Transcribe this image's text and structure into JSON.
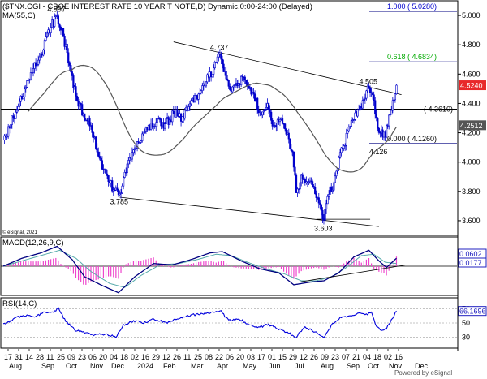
{
  "header": {
    "main_title": "($TNX.CGI - CBOE INTEREST RATE 10 YEAR T NOTE,D) Dynamic,0:00-24:00 (Delayed)",
    "ma_label": "MA(55,C)",
    "copyright": "© eSignal, 2021",
    "macd_label": "MACD(12,26,9,C)",
    "rsi_label": "RSI(14,C)",
    "footer": "Powered by eSignal"
  },
  "colors": {
    "candle": "#0000cc",
    "ma": "#555555",
    "fib_line": "#000080",
    "fib_1000": "#0000cc",
    "fib_0618": "#00aa00",
    "fib_0000": "#000000",
    "price_tag": "#e8282a",
    "last_tag": "#555555",
    "macd_line": "#000080",
    "signal_line": "#55aaaa",
    "histogram": "#ee44cc",
    "rsi_line": "#0000dd",
    "axis_tag": "#2020c0"
  },
  "chart_data": [
    {
      "type": "candlestick",
      "title": "($TNX.CGI - CBOE INTEREST RATE 10 YEAR T NOTE,D) Dynamic,0:00-24:00 (Delayed)",
      "ylim": [
        3.5,
        5.1
      ],
      "y_ticks": [
        "5.000",
        "4.800",
        "4.600",
        "4.400",
        "4.200",
        "4.000",
        "3.800",
        "3.600"
      ],
      "x_ticks": [
        "17",
        "31",
        "14",
        "28",
        "11",
        "25",
        "09",
        "23",
        "06",
        "20",
        "04",
        "18",
        "02",
        "16",
        "29",
        "12",
        "26",
        "11",
        "25",
        "08",
        "22",
        "06",
        "20",
        "03",
        "17",
        "01",
        "15",
        "29",
        "12",
        "26",
        "09",
        "23",
        "07",
        "21",
        "04",
        "18",
        "02",
        "16"
      ],
      "x_months": [
        "Aug",
        "Sep",
        "Oct",
        "Nov",
        "Dec",
        "2024",
        "Feb",
        "Mar",
        "Apr",
        "May",
        "Jun",
        "Jul",
        "Aug",
        "Sep",
        "Oct",
        "Nov",
        "Dec"
      ],
      "pivot_points": [
        {
          "d": 0,
          "v": 4.15
        },
        {
          "d": 10,
          "v": 4.34
        },
        {
          "d": 20,
          "v": 4.56
        },
        {
          "d": 30,
          "v": 4.74
        },
        {
          "d": 38,
          "v": 4.92
        },
        {
          "d": 43,
          "v": 4.997
        },
        {
          "d": 48,
          "v": 4.86
        },
        {
          "d": 53,
          "v": 4.66
        },
        {
          "d": 58,
          "v": 4.45
        },
        {
          "d": 64,
          "v": 4.33
        },
        {
          "d": 70,
          "v": 4.25
        },
        {
          "d": 76,
          "v": 4.04
        },
        {
          "d": 82,
          "v": 3.92
        },
        {
          "d": 88,
          "v": 3.81
        },
        {
          "d": 93,
          "v": 3.785
        },
        {
          "d": 97,
          "v": 3.93
        },
        {
          "d": 102,
          "v": 4.02
        },
        {
          "d": 108,
          "v": 4.13
        },
        {
          "d": 115,
          "v": 4.22
        },
        {
          "d": 122,
          "v": 4.27
        },
        {
          "d": 129,
          "v": 4.26
        },
        {
          "d": 136,
          "v": 4.33
        },
        {
          "d": 143,
          "v": 4.31
        },
        {
          "d": 150,
          "v": 4.42
        },
        {
          "d": 157,
          "v": 4.47
        },
        {
          "d": 164,
          "v": 4.58
        },
        {
          "d": 170,
          "v": 4.68
        },
        {
          "d": 173,
          "v": 4.737
        },
        {
          "d": 177,
          "v": 4.62
        },
        {
          "d": 182,
          "v": 4.48
        },
        {
          "d": 187,
          "v": 4.52
        },
        {
          "d": 192,
          "v": 4.58
        },
        {
          "d": 196,
          "v": 4.5
        },
        {
          "d": 201,
          "v": 4.42
        },
        {
          "d": 206,
          "v": 4.32
        },
        {
          "d": 211,
          "v": 4.4
        },
        {
          "d": 216,
          "v": 4.25
        },
        {
          "d": 221,
          "v": 4.29
        },
        {
          "d": 226,
          "v": 4.19
        },
        {
          "d": 231,
          "v": 4.07
        },
        {
          "d": 234,
          "v": 3.79
        },
        {
          "d": 238,
          "v": 3.91
        },
        {
          "d": 243,
          "v": 3.86
        },
        {
          "d": 248,
          "v": 3.83
        },
        {
          "d": 253,
          "v": 3.71
        },
        {
          "d": 256,
          "v": 3.603
        },
        {
          "d": 260,
          "v": 3.78
        },
        {
          "d": 264,
          "v": 3.86
        },
        {
          "d": 268,
          "v": 4.03
        },
        {
          "d": 272,
          "v": 4.11
        },
        {
          "d": 276,
          "v": 4.24
        },
        {
          "d": 280,
          "v": 4.29
        },
        {
          "d": 284,
          "v": 4.36
        },
        {
          "d": 288,
          "v": 4.43
        },
        {
          "d": 292,
          "v": 4.505
        },
        {
          "d": 296,
          "v": 4.42
        },
        {
          "d": 299,
          "v": 4.23
        },
        {
          "d": 302,
          "v": 4.22
        },
        {
          "d": 305,
          "v": 4.17
        },
        {
          "d": 308,
          "v": 4.32
        },
        {
          "d": 311,
          "v": 4.42
        },
        {
          "d": 314,
          "v": 4.524
        }
      ],
      "annotations": [
        {
          "text": "4.997",
          "d": 43,
          "v": 4.997
        },
        {
          "text": "4.737",
          "d": 173,
          "v": 4.737
        },
        {
          "text": "4.505",
          "d": 292,
          "v": 4.505
        },
        {
          "text": "3.785",
          "d": 93,
          "v": 3.785
        },
        {
          "text": "3.603",
          "d": 256,
          "v": 3.603
        },
        {
          "text": "4.126",
          "d": 300,
          "v": 4.126
        }
      ],
      "fib_levels": [
        {
          "label": "1.000 ( 5.0280)",
          "value": 5.028
        },
        {
          "label": "0.618 ( 4.6834)",
          "value": 4.6834
        },
        {
          "label": "0.000 ( 4.1260)",
          "value": 4.126
        }
      ],
      "horizontal_line": {
        "label": "( 4.3610)",
        "value": 4.361
      },
      "trendlines": [
        {
          "from": {
            "d": 136,
            "v": 4.82
          },
          "to": {
            "d": 318,
            "v": 4.46
          }
        },
        {
          "from": {
            "d": 93,
            "v": 3.76
          },
          "to": {
            "d": 300,
            "v": 3.56
          }
        },
        {
          "from": {
            "d": 250,
            "v": 3.61
          },
          "to": {
            "d": 293,
            "v": 3.61
          }
        }
      ],
      "ma_period": 55,
      "price_tags": [
        {
          "text": "4.5240",
          "value": 4.524,
          "kind": "current"
        },
        {
          "text": "4.2512",
          "value": 4.2512,
          "kind": "ma"
        }
      ]
    },
    {
      "type": "line",
      "name": "MACD(12,26,9,C)",
      "ylim": [
        -0.22,
        0.22
      ],
      "zero_line": 0,
      "tags": [
        "0.0602",
        "0.0177"
      ],
      "macd_points": [
        {
          "d": 0,
          "v": 0.0
        },
        {
          "d": 15,
          "v": 0.06
        },
        {
          "d": 30,
          "v": 0.1
        },
        {
          "d": 43,
          "v": 0.15
        },
        {
          "d": 55,
          "v": 0.05
        },
        {
          "d": 65,
          "v": -0.08
        },
        {
          "d": 80,
          "v": -0.15
        },
        {
          "d": 92,
          "v": -0.2
        },
        {
          "d": 105,
          "v": -0.08
        },
        {
          "d": 120,
          "v": 0.02
        },
        {
          "d": 135,
          "v": 0.01
        },
        {
          "d": 150,
          "v": 0.05
        },
        {
          "d": 165,
          "v": 0.1
        },
        {
          "d": 175,
          "v": 0.11
        },
        {
          "d": 190,
          "v": 0.04
        },
        {
          "d": 205,
          "v": -0.02
        },
        {
          "d": 220,
          "v": -0.05
        },
        {
          "d": 232,
          "v": -0.14
        },
        {
          "d": 245,
          "v": -0.12
        },
        {
          "d": 256,
          "v": -0.11
        },
        {
          "d": 268,
          "v": -0.05
        },
        {
          "d": 280,
          "v": 0.07
        },
        {
          "d": 292,
          "v": 0.12
        },
        {
          "d": 300,
          "v": 0.04
        },
        {
          "d": 306,
          "v": -0.01
        },
        {
          "d": 314,
          "v": 0.06
        }
      ],
      "signal_points": [
        {
          "d": 0,
          "v": 0.0
        },
        {
          "d": 15,
          "v": 0.04
        },
        {
          "d": 30,
          "v": 0.08
        },
        {
          "d": 45,
          "v": 0.12
        },
        {
          "d": 58,
          "v": 0.06
        },
        {
          "d": 70,
          "v": -0.04
        },
        {
          "d": 85,
          "v": -0.13
        },
        {
          "d": 97,
          "v": -0.16
        },
        {
          "d": 110,
          "v": -0.07
        },
        {
          "d": 125,
          "v": 0.01
        },
        {
          "d": 140,
          "v": 0.02
        },
        {
          "d": 155,
          "v": 0.05
        },
        {
          "d": 170,
          "v": 0.09
        },
        {
          "d": 182,
          "v": 0.08
        },
        {
          "d": 195,
          "v": 0.03
        },
        {
          "d": 210,
          "v": -0.02
        },
        {
          "d": 225,
          "v": -0.06
        },
        {
          "d": 238,
          "v": -0.11
        },
        {
          "d": 250,
          "v": -0.11
        },
        {
          "d": 262,
          "v": -0.08
        },
        {
          "d": 274,
          "v": -0.01
        },
        {
          "d": 286,
          "v": 0.08
        },
        {
          "d": 296,
          "v": 0.09
        },
        {
          "d": 305,
          "v": 0.03
        },
        {
          "d": 314,
          "v": 0.02
        }
      ],
      "trendline": {
        "from": {
          "d": 236,
          "v": -0.12
        },
        "to": {
          "d": 322,
          "v": 0.01
        }
      }
    },
    {
      "type": "line",
      "name": "RSI(14,C)",
      "ylim": [
        15,
        85
      ],
      "y_ticks": [
        "70",
        "50",
        "30"
      ],
      "tags": [
        "66.1696"
      ],
      "points": [
        {
          "d": 0,
          "v": 48
        },
        {
          "d": 8,
          "v": 55
        },
        {
          "d": 16,
          "v": 61
        },
        {
          "d": 24,
          "v": 58
        },
        {
          "d": 32,
          "v": 64
        },
        {
          "d": 40,
          "v": 66
        },
        {
          "d": 44,
          "v": 70
        },
        {
          "d": 50,
          "v": 52
        },
        {
          "d": 58,
          "v": 40
        },
        {
          "d": 66,
          "v": 36
        },
        {
          "d": 74,
          "v": 33
        },
        {
          "d": 82,
          "v": 35
        },
        {
          "d": 90,
          "v": 30
        },
        {
          "d": 96,
          "v": 47
        },
        {
          "d": 104,
          "v": 53
        },
        {
          "d": 112,
          "v": 50
        },
        {
          "d": 120,
          "v": 56
        },
        {
          "d": 130,
          "v": 50
        },
        {
          "d": 140,
          "v": 57
        },
        {
          "d": 150,
          "v": 61
        },
        {
          "d": 160,
          "v": 63
        },
        {
          "d": 168,
          "v": 65
        },
        {
          "d": 174,
          "v": 66
        },
        {
          "d": 180,
          "v": 53
        },
        {
          "d": 188,
          "v": 56
        },
        {
          "d": 196,
          "v": 48
        },
        {
          "d": 204,
          "v": 44
        },
        {
          "d": 212,
          "v": 48
        },
        {
          "d": 220,
          "v": 42
        },
        {
          "d": 228,
          "v": 36
        },
        {
          "d": 234,
          "v": 30
        },
        {
          "d": 240,
          "v": 44
        },
        {
          "d": 246,
          "v": 41
        },
        {
          "d": 252,
          "v": 34
        },
        {
          "d": 256,
          "v": 30
        },
        {
          "d": 262,
          "v": 47
        },
        {
          "d": 270,
          "v": 58
        },
        {
          "d": 278,
          "v": 61
        },
        {
          "d": 284,
          "v": 64
        },
        {
          "d": 290,
          "v": 62
        },
        {
          "d": 294,
          "v": 65
        },
        {
          "d": 298,
          "v": 45
        },
        {
          "d": 302,
          "v": 40
        },
        {
          "d": 306,
          "v": 42
        },
        {
          "d": 310,
          "v": 55
        },
        {
          "d": 314,
          "v": 66.17
        }
      ]
    }
  ]
}
